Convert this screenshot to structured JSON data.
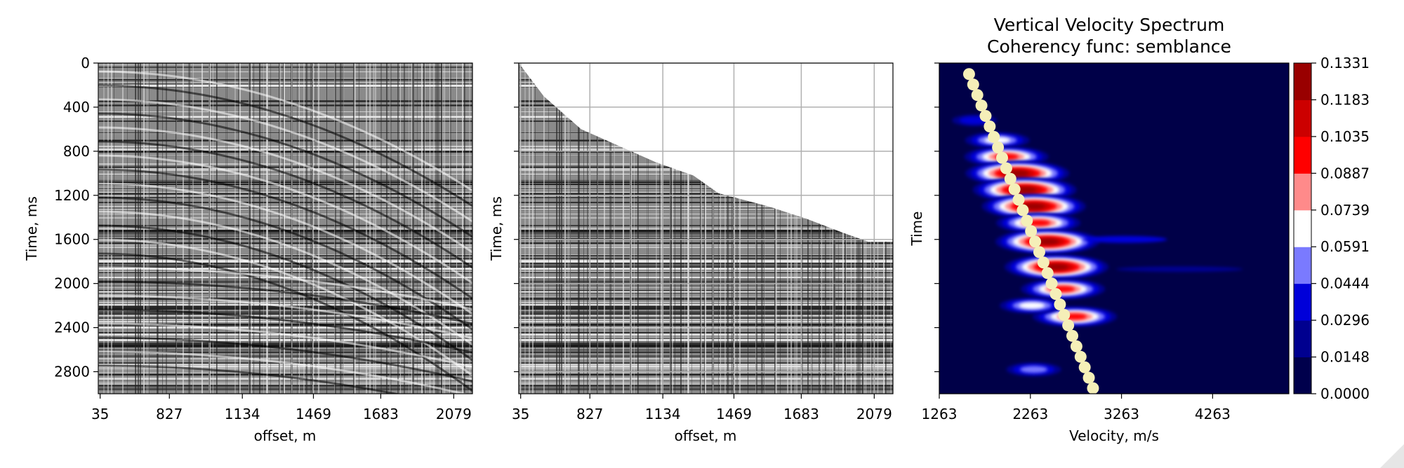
{
  "chart_data": [
    {
      "type": "heatmap",
      "title": "",
      "xlabel": "offset, m",
      "ylabel": "Time, ms",
      "x_ticks": [
        "35",
        "827",
        "1134",
        "1469",
        "1683",
        "2079"
      ],
      "y_ticks": [
        0,
        400,
        800,
        1200,
        1600,
        2000,
        2400,
        2800
      ],
      "ylim": [
        3000,
        0
      ],
      "colormap": [
        "#000000",
        "#ffffff"
      ],
      "content": "seismic gather (variable-density wiggle traces)"
    },
    {
      "type": "heatmap",
      "title": "",
      "xlabel": "offset, m",
      "ylabel": "Time, ms",
      "x_ticks": [
        "35",
        "827",
        "1134",
        "1469",
        "1683",
        "2079"
      ],
      "y_ticks": [
        0,
        400,
        800,
        1200,
        1600,
        2000,
        2400,
        2800
      ],
      "ylim": [
        3000,
        0
      ],
      "grid": true,
      "content": "muted seismic gather",
      "mute_profile": [
        {
          "offset_index": 0,
          "time": 0
        },
        {
          "offset_index": 2,
          "time": 300
        },
        {
          "offset_index": 5,
          "time": 600
        },
        {
          "offset_index": 8,
          "time": 750
        },
        {
          "offset_index": 11,
          "time": 900
        },
        {
          "offset_index": 14,
          "time": 1020
        },
        {
          "offset_index": 16,
          "time": 1180
        },
        {
          "offset_index": 20,
          "time": 1300
        },
        {
          "offset_index": 23,
          "time": 1410
        },
        {
          "offset_index": 26,
          "time": 1540
        },
        {
          "offset_index": 28,
          "time": 1620
        },
        {
          "offset_index": 30,
          "time": 1620
        }
      ]
    },
    {
      "type": "heatmap",
      "title": "Vertical Velocity Spectrum\nCoherency func: semblance",
      "xlabel": "Velocity, m/s",
      "ylabel": "Time",
      "x_ticks": [
        1263,
        2263,
        3263,
        4263
      ],
      "xlim": [
        1263,
        5100
      ],
      "ylim": [
        3000,
        0
      ],
      "colorbar_ticks": [
        "0.0000",
        "0.0148",
        "0.0296",
        "0.0444",
        "0.0591",
        "0.0739",
        "0.0887",
        "0.1035",
        "0.1183",
        "0.1331"
      ],
      "colorbar_colors": [
        "#00004c",
        "#00008f",
        "#0000d9",
        "#7a7aff",
        "#ffffff",
        "#ff8a8a",
        "#ff0000",
        "#cc0000",
        "#990000"
      ],
      "background_color": "#000048",
      "blobs": [
        {
          "time": 520,
          "velocity": 1650,
          "value": 0.03
        },
        {
          "time": 700,
          "velocity": 1900,
          "value": 0.06
        },
        {
          "time": 850,
          "velocity": 2000,
          "value": 0.1
        },
        {
          "time": 1000,
          "velocity": 2120,
          "value": 0.12
        },
        {
          "time": 1150,
          "velocity": 2200,
          "value": 0.13
        },
        {
          "time": 1300,
          "velocity": 2300,
          "value": 0.12
        },
        {
          "time": 1450,
          "velocity": 2350,
          "value": 0.1
        },
        {
          "time": 1620,
          "velocity": 2450,
          "value": 0.13
        },
        {
          "time": 1850,
          "velocity": 2550,
          "value": 0.12
        },
        {
          "time": 2050,
          "velocity": 2620,
          "value": 0.1
        },
        {
          "time": 2300,
          "velocity": 2750,
          "value": 0.09
        },
        {
          "time": 2200,
          "velocity": 2280,
          "value": 0.06
        },
        {
          "time": 2780,
          "velocity": 2300,
          "value": 0.05
        }
      ],
      "picked_velocity": [
        {
          "time": 100,
          "velocity": 1590
        },
        {
          "time": 2950,
          "velocity": 2950
        }
      ],
      "pick_color": "#f5efb8"
    }
  ]
}
